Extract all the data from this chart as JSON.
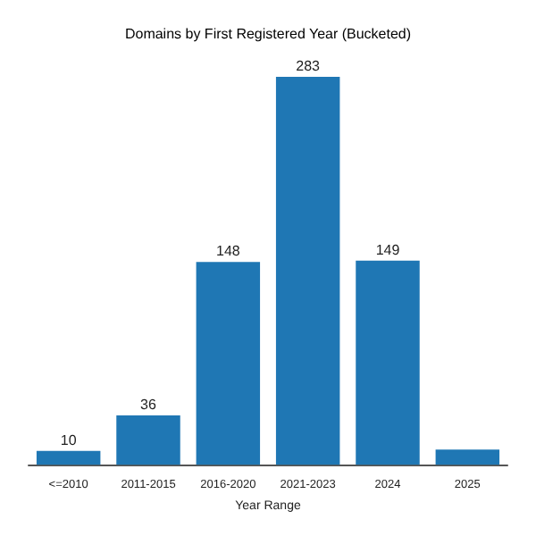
{
  "chart_data": {
    "type": "bar",
    "title": "Domains by First Registered Year (Bucketed)",
    "xlabel": "Year Range",
    "categories": [
      "<=2010",
      "2011-2015",
      "2016-2020",
      "2021-2023",
      "2024",
      "2025"
    ],
    "values": [
      10,
      36,
      148,
      283,
      149,
      11
    ],
    "color": "#1f77b4",
    "value_labels": [
      "10",
      "36",
      "148",
      "283",
      "149",
      null
    ]
  }
}
